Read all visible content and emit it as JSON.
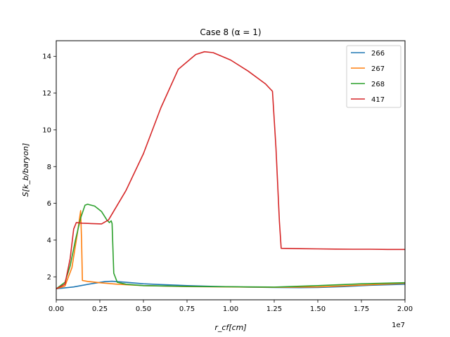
{
  "chart_data": {
    "type": "line",
    "title": "Case 8 (α = 1)",
    "xlabel": "r_cf[cm]",
    "ylabel": "S[k_b/baryon]",
    "x_offset_label": "1e7",
    "xlim": [
      0,
      20000000
    ],
    "ylim": [
      0.75,
      14.85
    ],
    "x_ticks": [
      0,
      2500000,
      5000000,
      7500000,
      10000000,
      12500000,
      15000000,
      17500000,
      20000000
    ],
    "x_tick_labels": [
      "0.00",
      "0.25",
      "0.50",
      "0.75",
      "1.00",
      "1.25",
      "1.50",
      "1.75",
      "2.00"
    ],
    "y_ticks": [
      2,
      4,
      6,
      8,
      10,
      12,
      14
    ],
    "y_tick_labels": [
      "2",
      "4",
      "6",
      "8",
      "10",
      "12",
      "14"
    ],
    "grid": false,
    "legend_position": "top-right",
    "series": [
      {
        "name": "266",
        "color": "#1f77b4",
        "x": [
          0,
          1000000,
          2000000,
          2800000,
          3200000,
          4000000,
          5000000,
          6000000,
          7500000,
          9000000,
          10000000,
          11000000,
          12500000,
          14000000,
          15000000,
          16500000,
          18000000,
          20000000
        ],
        "y": [
          1.35,
          1.45,
          1.62,
          1.74,
          1.76,
          1.7,
          1.62,
          1.58,
          1.52,
          1.48,
          1.46,
          1.44,
          1.42,
          1.41,
          1.42,
          1.47,
          1.54,
          1.6
        ]
      },
      {
        "name": "267",
        "color": "#ff7f0e",
        "x": [
          0,
          500000,
          900000,
          1200000,
          1400000,
          1450000,
          1500000,
          1800000,
          2500000,
          3500000,
          5000000,
          7500000,
          10000000,
          12500000,
          15000000,
          17500000,
          20000000
        ],
        "y": [
          1.35,
          1.5,
          2.5,
          4.3,
          5.6,
          4.0,
          1.8,
          1.75,
          1.68,
          1.6,
          1.52,
          1.47,
          1.45,
          1.43,
          1.45,
          1.55,
          1.65
        ]
      },
      {
        "name": "268",
        "color": "#2ca02c",
        "x": [
          0,
          500000,
          800000,
          1100000,
          1400000,
          1650000,
          1800000,
          2200000,
          2600000,
          2900000,
          3050000,
          3150000,
          3200000,
          3300000,
          3500000,
          4000000,
          5000000,
          7500000,
          10000000,
          12500000,
          15000000,
          17500000,
          20000000
        ],
        "y": [
          1.35,
          1.7,
          2.6,
          4.0,
          5.2,
          5.9,
          5.95,
          5.85,
          5.55,
          5.1,
          4.95,
          5.05,
          4.9,
          2.2,
          1.7,
          1.6,
          1.52,
          1.48,
          1.46,
          1.44,
          1.52,
          1.62,
          1.68
        ]
      },
      {
        "name": "417",
        "color": "#d62728",
        "x": [
          0,
          500000,
          800000,
          1000000,
          1150000,
          1500000,
          2000000,
          2600000,
          3000000,
          4000000,
          5000000,
          6000000,
          7000000,
          8000000,
          8500000,
          9000000,
          10000000,
          11000000,
          12000000,
          12400000,
          12600000,
          12800000,
          12900000,
          14000000,
          15000000,
          16000000,
          17000000,
          18000000,
          19000000,
          20000000
        ],
        "y": [
          1.35,
          1.6,
          3.0,
          4.6,
          4.95,
          4.92,
          4.9,
          4.88,
          5.1,
          6.7,
          8.7,
          11.2,
          13.3,
          14.1,
          14.25,
          14.2,
          13.8,
          13.2,
          12.5,
          12.1,
          9.0,
          5.0,
          3.55,
          3.53,
          3.52,
          3.51,
          3.5,
          3.5,
          3.49,
          3.49
        ]
      }
    ]
  }
}
